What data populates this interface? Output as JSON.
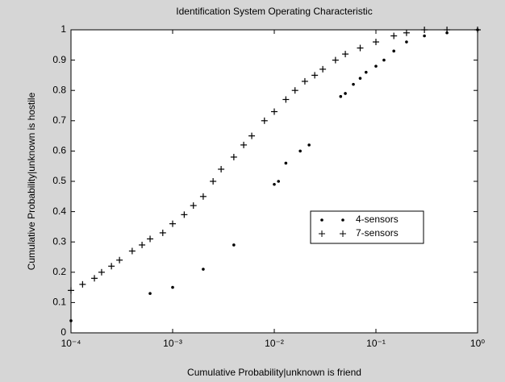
{
  "chart_data": {
    "type": "scatter",
    "title": "Identification System Operating Characteristic",
    "xlabel": "Cumulative Probability|unknown is friend",
    "ylabel": "Cumulative Probability|unknown is hostile",
    "xscale": "log",
    "xlim": [
      0.0001,
      1
    ],
    "xticks": [
      {
        "value": 0.0001,
        "label": "10⁻⁴"
      },
      {
        "value": 0.001,
        "label": "10⁻³"
      },
      {
        "value": 0.01,
        "label": "10⁻²"
      },
      {
        "value": 0.1,
        "label": "10⁻¹"
      },
      {
        "value": 1,
        "label": "10⁰"
      }
    ],
    "ylim": [
      0,
      1
    ],
    "yticks": [
      0,
      0.1,
      0.2,
      0.3,
      0.4,
      0.5,
      0.6,
      0.7,
      0.8,
      0.9,
      1
    ],
    "legend": "center-right",
    "series": [
      {
        "name": "4-sensors",
        "marker": "dot",
        "color": "#000000",
        "x": [
          0.0001,
          0.0006,
          0.001,
          0.002,
          0.004,
          0.01,
          0.011,
          0.013,
          0.018,
          0.022,
          0.045,
          0.05,
          0.06,
          0.07,
          0.08,
          0.1,
          0.12,
          0.15,
          0.2,
          0.3,
          0.5,
          1
        ],
        "values": [
          0.04,
          0.13,
          0.15,
          0.21,
          0.29,
          0.49,
          0.5,
          0.56,
          0.6,
          0.62,
          0.78,
          0.79,
          0.82,
          0.84,
          0.86,
          0.88,
          0.9,
          0.93,
          0.96,
          0.98,
          0.99,
          1
        ]
      },
      {
        "name": "7-sensors",
        "marker": "plus",
        "color": "#000000",
        "x": [
          0.0001,
          0.00013,
          0.00017,
          0.0002,
          0.00025,
          0.0003,
          0.0004,
          0.0005,
          0.0006,
          0.0008,
          0.001,
          0.0013,
          0.0016,
          0.002,
          0.0025,
          0.003,
          0.004,
          0.005,
          0.006,
          0.008,
          0.01,
          0.013,
          0.016,
          0.02,
          0.025,
          0.03,
          0.04,
          0.05,
          0.07,
          0.1,
          0.15,
          0.2,
          0.3,
          0.5,
          1
        ],
        "values": [
          0.14,
          0.16,
          0.18,
          0.2,
          0.22,
          0.24,
          0.27,
          0.29,
          0.31,
          0.33,
          0.36,
          0.39,
          0.42,
          0.45,
          0.5,
          0.54,
          0.58,
          0.62,
          0.65,
          0.7,
          0.73,
          0.77,
          0.8,
          0.83,
          0.85,
          0.87,
          0.9,
          0.92,
          0.94,
          0.96,
          0.98,
          0.99,
          1,
          1,
          1
        ]
      }
    ]
  }
}
